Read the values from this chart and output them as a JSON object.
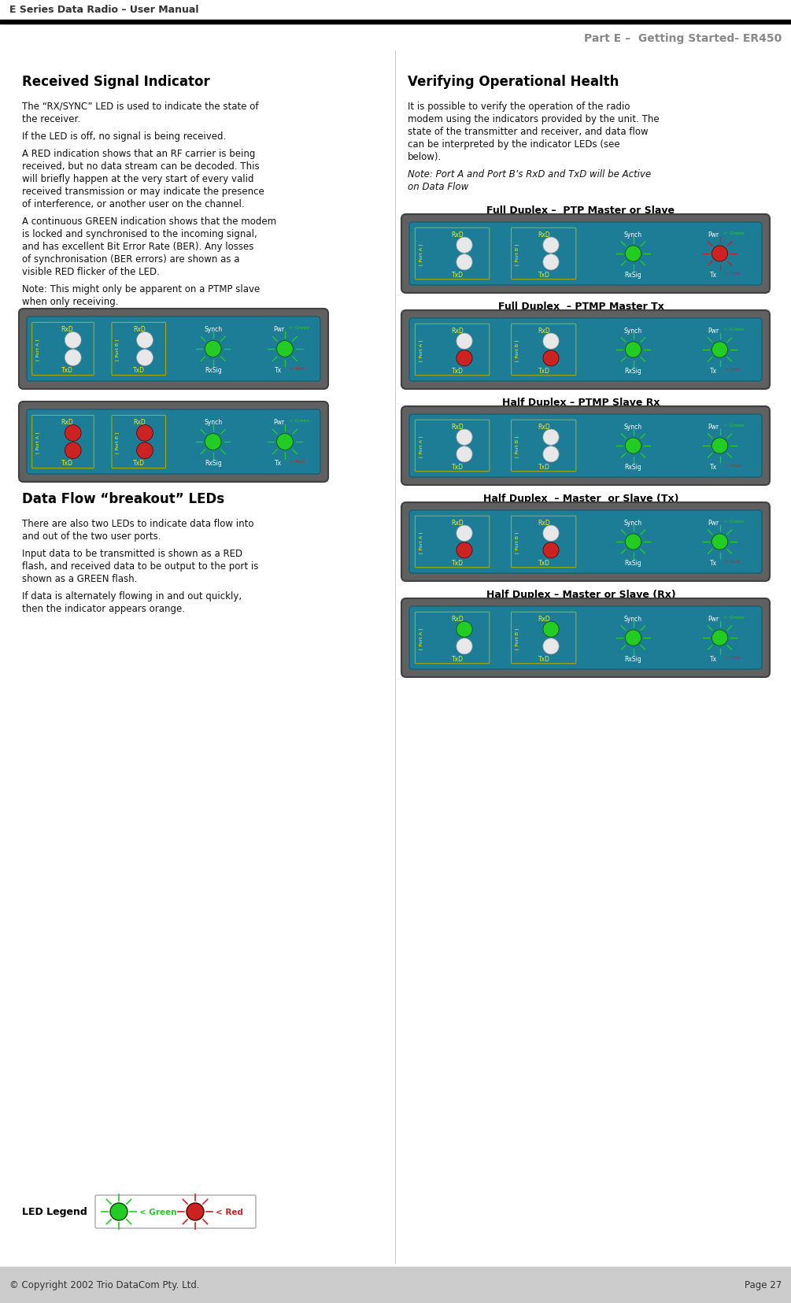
{
  "header_left": "E Series Data Radio – User Manual",
  "header_right": "Part E –  Getting Started- ER450",
  "footer_left": "© Copyright 2002 Trio DataCom Pty. Ltd.",
  "footer_right": "Page 27",
  "bg_color": "#ffffff",
  "footer_bg": "#cccccc",
  "section_titles": {
    "left": "Received Signal Indicator",
    "right": "Verifying Operational Health"
  },
  "left_text_blocks": [
    "The “RX/SYNC” LED is used to indicate the state of the receiver.",
    "If the LED is off, no signal is being received.",
    "A RED indication shows that an RF carrier is being received, but no data stream can be decoded. This will briefly happen at the very start of every valid received transmission or may indicate the presence of interference, or another user on the channel.",
    "A continuous GREEN indication shows that the modem is locked and synchronised to the incoming signal, and has excellent Bit Error Rate (BER). Any losses of synchronisation (BER errors) are shown as a visible RED flicker of the LED.",
    "Note: This might only be apparent on a PTMP slave when only receiving."
  ],
  "data_flow_title": "Data Flow “breakout” LEDs",
  "data_flow_text": [
    "There are also two LEDs to indicate data flow into and out of the two user ports.",
    "Input data to be transmitted is shown as a RED flash, and received data to be output to the port is shown as a GREEN flash.",
    "If data is alternately flowing in and out quickly, then the indicator appears orange."
  ],
  "right_text_intro": "It is possible to verify the operation of the radio modem using the indicators provided by the unit. The state of the transmitter and receiver, and data flow can be interpreted by the indicator LEDs (see below).",
  "right_note": "Note: Port A and Port B’s RxD and TxD will be Active on Data Flow",
  "panel_titles": [
    "Full Duplex –  PTP Master or Slave",
    "Full Duplex  – PTMP Master Tx",
    "Half Duplex – PTMP Slave Rx",
    "Half Duplex  – Master  or Slave (Tx)",
    "Half Duplex – Master or Slave (Rx)"
  ],
  "panel_configs": [
    {
      "portA_rx": "off",
      "portA_tx": "off",
      "portB_rx": "off",
      "portB_tx": "off",
      "synch": "green_burst",
      "pwr": "red_burst",
      "rxsig": "off",
      "tx": "off"
    },
    {
      "portA_rx": "off",
      "portA_tx": "red",
      "portB_rx": "off",
      "portB_tx": "red",
      "synch": "green_burst",
      "pwr": "green_burst",
      "rxsig": "off",
      "tx": "red_burst"
    },
    {
      "portA_rx": "off",
      "portA_tx": "off",
      "portB_rx": "off",
      "portB_tx": "off",
      "synch": "green_burst",
      "pwr": "green_burst",
      "rxsig": "green_burst",
      "tx": "off"
    },
    {
      "portA_rx": "off",
      "portA_tx": "red",
      "portB_rx": "off",
      "portB_tx": "red",
      "synch": "green_burst",
      "pwr": "green_burst",
      "rxsig": "off",
      "tx": "red_burst"
    },
    {
      "portA_rx": "green",
      "portA_tx": "off",
      "portB_rx": "green",
      "portB_tx": "off",
      "synch": "green_burst",
      "pwr": "green_burst",
      "rxsig": "green_burst",
      "tx": "off"
    }
  ],
  "left_panel_configs": [
    {
      "portA_rx": "off",
      "portA_tx": "off",
      "portB_rx": "off",
      "portB_tx": "off",
      "synch": "green_burst",
      "pwr": "green_burst",
      "rxsig": "off",
      "tx": "red_burst"
    },
    {
      "portA_rx": "red",
      "portA_tx": "red",
      "portB_rx": "red",
      "portB_tx": "red",
      "synch": "green_burst",
      "pwr": "green_burst",
      "rxsig": "orange_burst",
      "tx": "orange_burst"
    }
  ],
  "colors": {
    "panel_bg": "#1e7d96",
    "panel_outer": "#5a5a5a",
    "led_green": "#22cc22",
    "led_red": "#cc2222",
    "led_orange": "#dd8800",
    "led_white": "#e8e8e8",
    "text_yellow": "#ffee00",
    "text_white": "#ffffff"
  }
}
